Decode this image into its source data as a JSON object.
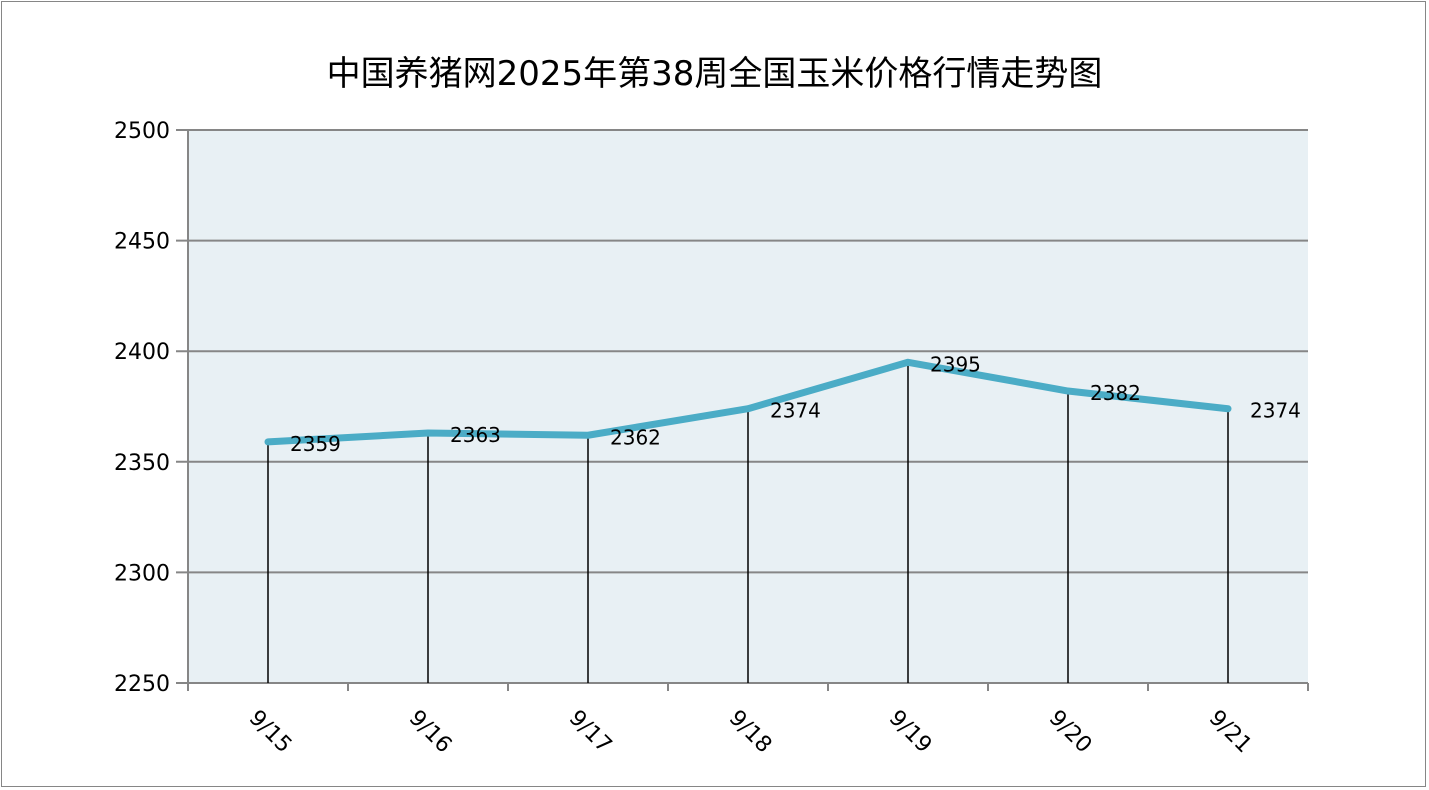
{
  "chart_data": {
    "type": "line",
    "title": "中国养猪网2025年第38周全国玉米价格行情走势图",
    "categories": [
      "9/15",
      "9/16",
      "9/17",
      "9/18",
      "9/19",
      "9/20",
      "9/21"
    ],
    "values": [
      2359,
      2363,
      2362,
      2374,
      2395,
      2382,
      2374
    ],
    "data_labels": [
      "2359",
      "2363",
      "2362",
      "2374",
      "2395",
      "2382",
      "2374"
    ],
    "ylim": [
      2250,
      2500
    ],
    "yticks": [
      2250,
      2300,
      2350,
      2400,
      2450,
      2500
    ],
    "grid": true,
    "drop_lines": true,
    "legend": "none",
    "colors": {
      "line": "#4bacc6",
      "plot_bg": "#e8f0f4",
      "grid": "#868686",
      "drop_line": "#000000"
    }
  }
}
